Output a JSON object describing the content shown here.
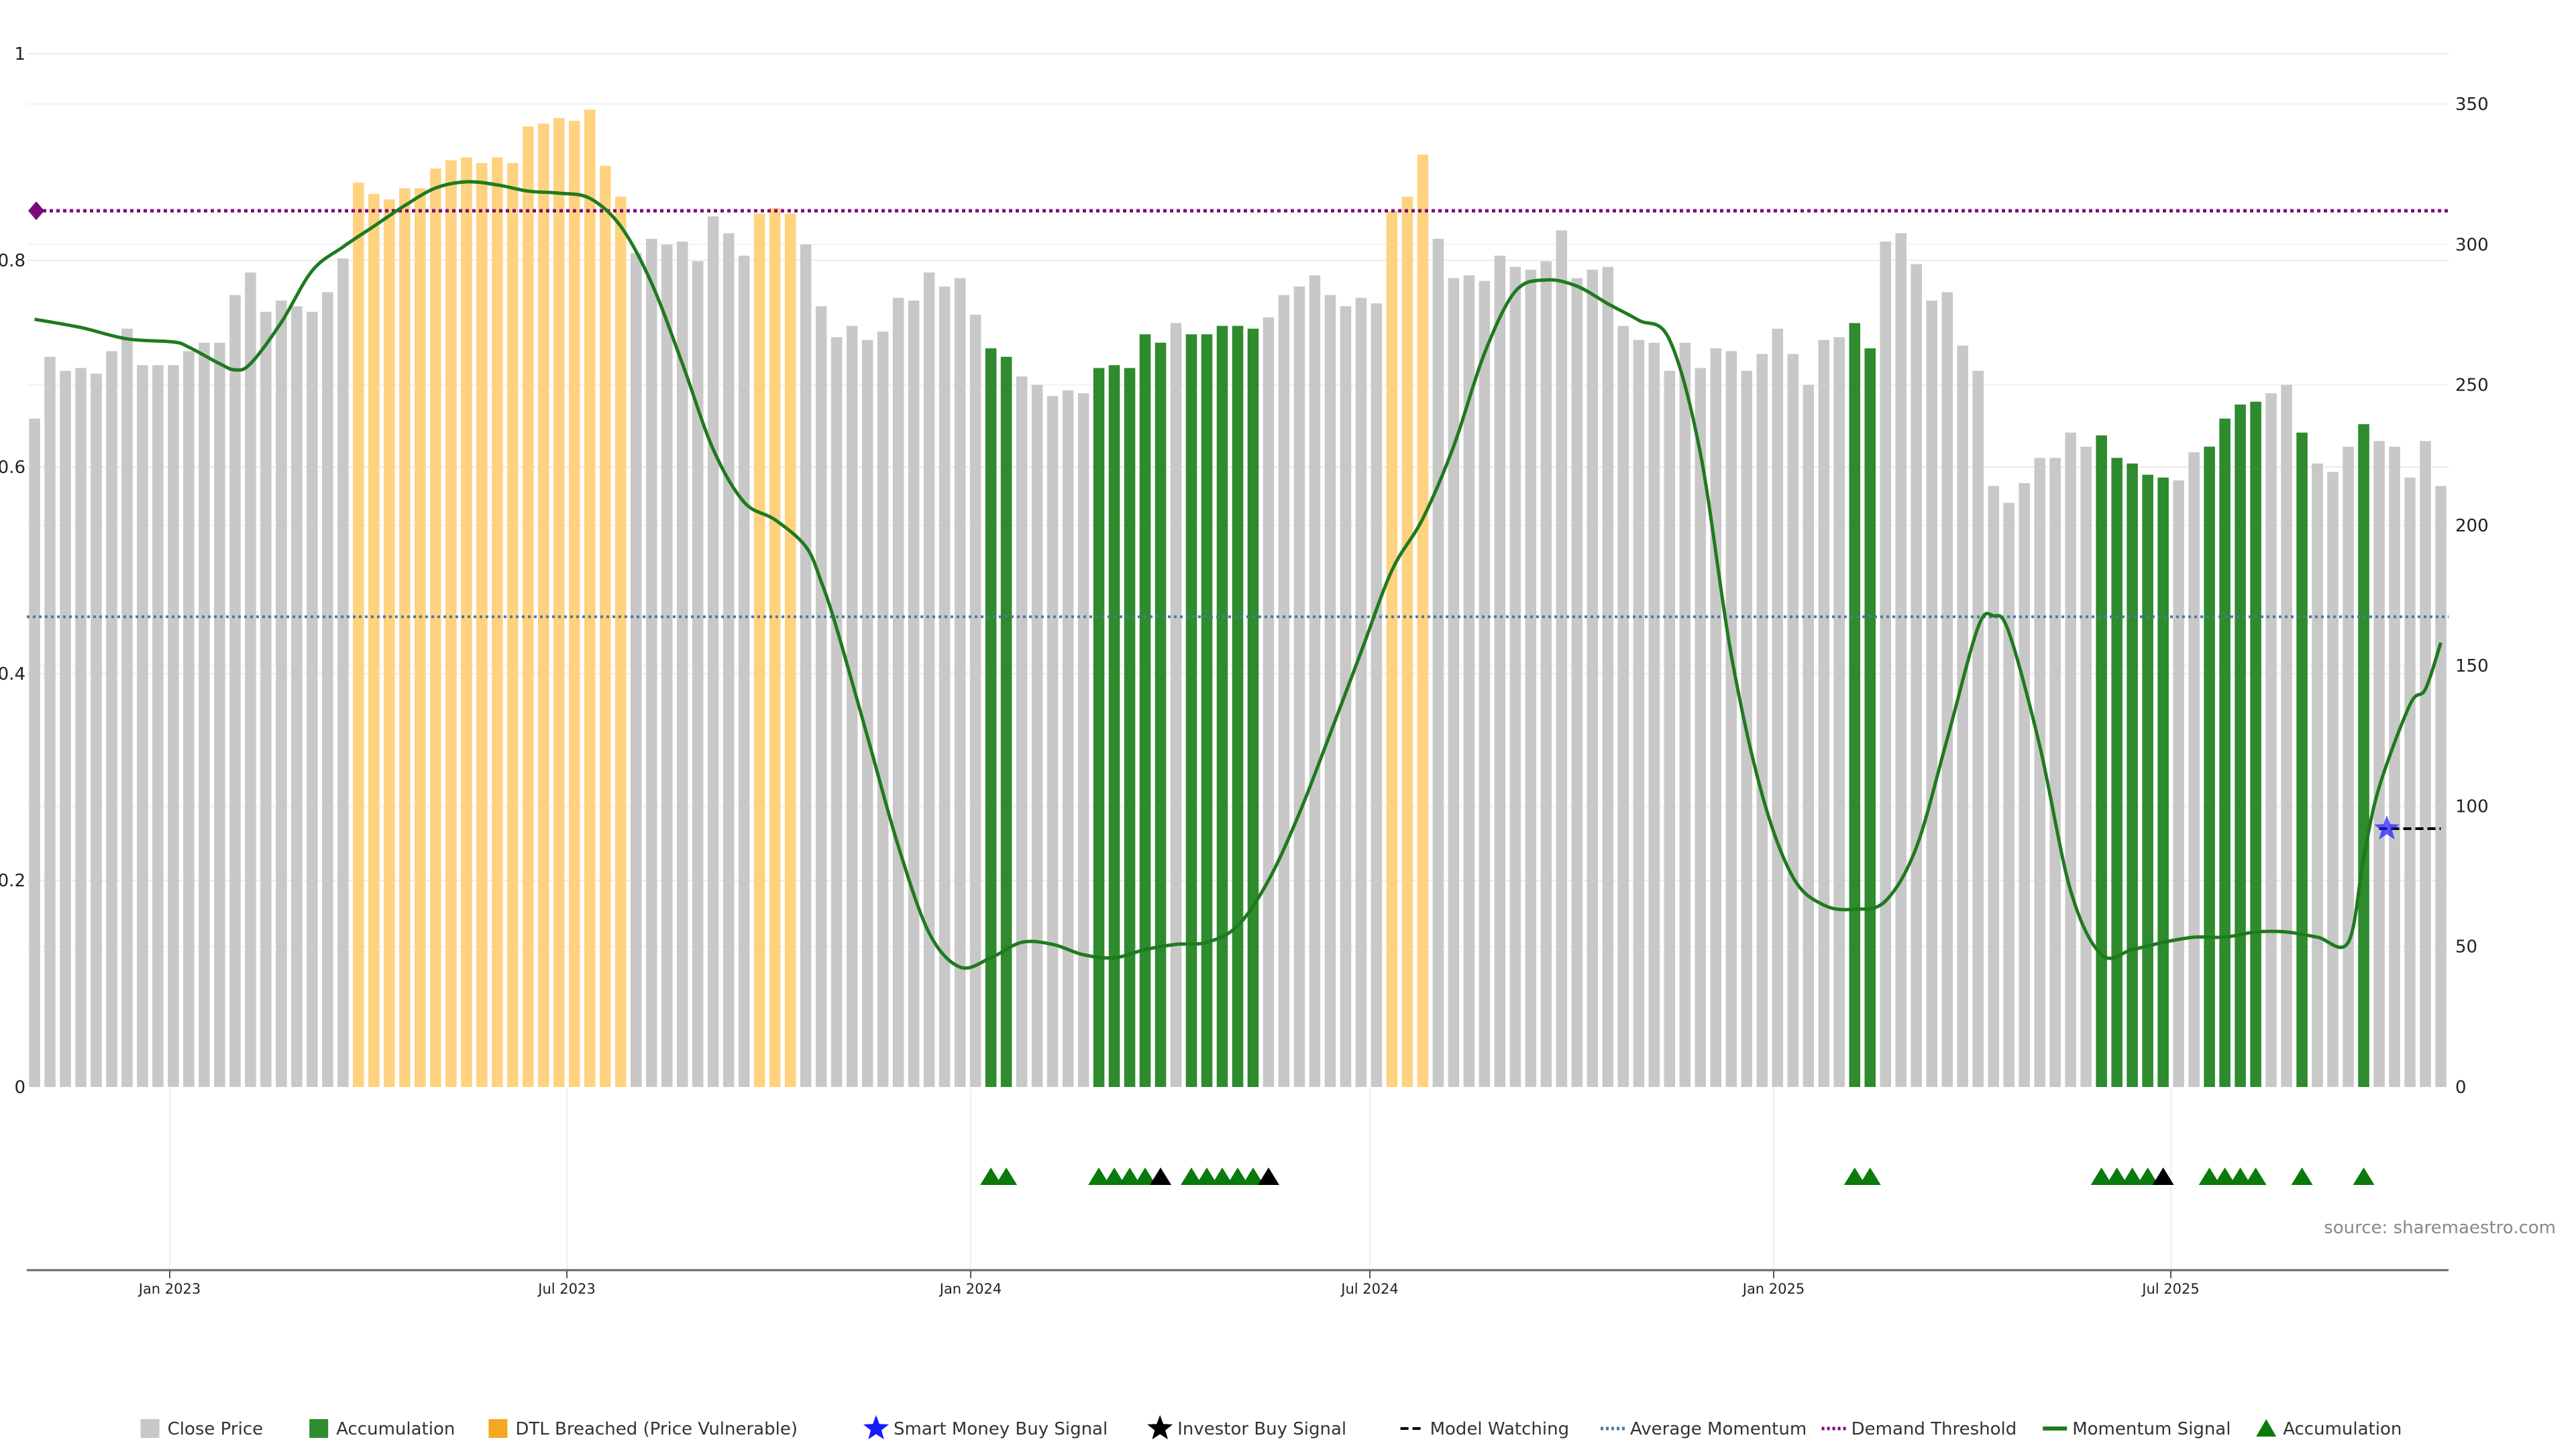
{
  "chart_data": {
    "type": "bar",
    "title": "",
    "source": "source: sharemaestro.com",
    "left_axis": {
      "ylim": [
        0,
        1
      ],
      "ticks": [
        "0",
        "0.2",
        "0.4",
        "0.6",
        "0.8",
        "1"
      ]
    },
    "right_axis": {
      "ylim": [
        0,
        350
      ],
      "ticks": [
        "0",
        "50",
        "100",
        "150",
        "200",
        "250",
        "300",
        "350"
      ]
    },
    "x_labels": [
      "Jan 2023",
      "Jul 2023",
      "Jan 2024",
      "Jul 2024",
      "Jan 2025",
      "Jul 2025"
    ],
    "grid": true,
    "colors": {
      "close_price": "#c8c8c8",
      "accumulation": "#2e8b2e",
      "dtl_breached": "#ffd27f",
      "momentum": "#1f7a1f",
      "average_momentum": "#4a78a0",
      "demand_threshold": "#7a0a7a",
      "smart_money": "#1a1aff",
      "investor": "#000000",
      "accum_marker": "#0a7a0a"
    },
    "bars": [
      {
        "v": 238,
        "s": "c"
      },
      {
        "v": 260,
        "s": "c"
      },
      {
        "v": 255,
        "s": "c"
      },
      {
        "v": 256,
        "s": "c"
      },
      {
        "v": 254,
        "s": "c"
      },
      {
        "v": 262,
        "s": "c"
      },
      {
        "v": 270,
        "s": "c"
      },
      {
        "v": 257,
        "s": "c"
      },
      {
        "v": 257,
        "s": "c"
      },
      {
        "v": 257,
        "s": "c"
      },
      {
        "v": 262,
        "s": "c"
      },
      {
        "v": 265,
        "s": "c"
      },
      {
        "v": 265,
        "s": "c"
      },
      {
        "v": 282,
        "s": "c"
      },
      {
        "v": 290,
        "s": "c"
      },
      {
        "v": 276,
        "s": "c"
      },
      {
        "v": 280,
        "s": "c"
      },
      {
        "v": 278,
        "s": "c"
      },
      {
        "v": 276,
        "s": "c"
      },
      {
        "v": 283,
        "s": "c"
      },
      {
        "v": 295,
        "s": "c"
      },
      {
        "v": 322,
        "s": "d"
      },
      {
        "v": 318,
        "s": "d"
      },
      {
        "v": 316,
        "s": "d"
      },
      {
        "v": 320,
        "s": "d"
      },
      {
        "v": 320,
        "s": "d"
      },
      {
        "v": 327,
        "s": "d"
      },
      {
        "v": 330,
        "s": "d"
      },
      {
        "v": 331,
        "s": "d"
      },
      {
        "v": 329,
        "s": "d"
      },
      {
        "v": 331,
        "s": "d"
      },
      {
        "v": 329,
        "s": "d"
      },
      {
        "v": 342,
        "s": "d"
      },
      {
        "v": 343,
        "s": "d"
      },
      {
        "v": 345,
        "s": "d"
      },
      {
        "v": 344,
        "s": "d"
      },
      {
        "v": 348,
        "s": "d"
      },
      {
        "v": 328,
        "s": "d"
      },
      {
        "v": 317,
        "s": "d"
      },
      {
        "v": 297,
        "s": "c"
      },
      {
        "v": 302,
        "s": "c"
      },
      {
        "v": 300,
        "s": "c"
      },
      {
        "v": 301,
        "s": "c"
      },
      {
        "v": 294,
        "s": "c"
      },
      {
        "v": 310,
        "s": "c"
      },
      {
        "v": 304,
        "s": "c"
      },
      {
        "v": 296,
        "s": "c"
      },
      {
        "v": 311,
        "s": "d"
      },
      {
        "v": 313,
        "s": "d"
      },
      {
        "v": 311,
        "s": "d"
      },
      {
        "v": 300,
        "s": "c"
      },
      {
        "v": 278,
        "s": "c"
      },
      {
        "v": 267,
        "s": "c"
      },
      {
        "v": 271,
        "s": "c"
      },
      {
        "v": 266,
        "s": "c"
      },
      {
        "v": 269,
        "s": "c"
      },
      {
        "v": 281,
        "s": "c"
      },
      {
        "v": 280,
        "s": "c"
      },
      {
        "v": 290,
        "s": "c"
      },
      {
        "v": 285,
        "s": "c"
      },
      {
        "v": 288,
        "s": "c"
      },
      {
        "v": 275,
        "s": "c"
      },
      {
        "v": 263,
        "s": "a"
      },
      {
        "v": 260,
        "s": "a"
      },
      {
        "v": 253,
        "s": "c"
      },
      {
        "v": 250,
        "s": "c"
      },
      {
        "v": 246,
        "s": "c"
      },
      {
        "v": 248,
        "s": "c"
      },
      {
        "v": 247,
        "s": "c"
      },
      {
        "v": 256,
        "s": "a"
      },
      {
        "v": 257,
        "s": "a"
      },
      {
        "v": 256,
        "s": "a"
      },
      {
        "v": 268,
        "s": "a"
      },
      {
        "v": 265,
        "s": "a"
      },
      {
        "v": 272,
        "s": "c"
      },
      {
        "v": 268,
        "s": "a"
      },
      {
        "v": 268,
        "s": "a"
      },
      {
        "v": 271,
        "s": "a"
      },
      {
        "v": 271,
        "s": "a"
      },
      {
        "v": 270,
        "s": "a"
      },
      {
        "v": 274,
        "s": "c"
      },
      {
        "v": 282,
        "s": "c"
      },
      {
        "v": 285,
        "s": "c"
      },
      {
        "v": 289,
        "s": "c"
      },
      {
        "v": 282,
        "s": "c"
      },
      {
        "v": 278,
        "s": "c"
      },
      {
        "v": 281,
        "s": "c"
      },
      {
        "v": 279,
        "s": "c"
      },
      {
        "v": 312,
        "s": "d"
      },
      {
        "v": 317,
        "s": "d"
      },
      {
        "v": 332,
        "s": "d"
      },
      {
        "v": 302,
        "s": "c"
      },
      {
        "v": 288,
        "s": "c"
      },
      {
        "v": 289,
        "s": "c"
      },
      {
        "v": 287,
        "s": "c"
      },
      {
        "v": 296,
        "s": "c"
      },
      {
        "v": 292,
        "s": "c"
      },
      {
        "v": 291,
        "s": "c"
      },
      {
        "v": 294,
        "s": "c"
      },
      {
        "v": 305,
        "s": "c"
      },
      {
        "v": 288,
        "s": "c"
      },
      {
        "v": 291,
        "s": "c"
      },
      {
        "v": 292,
        "s": "c"
      },
      {
        "v": 271,
        "s": "c"
      },
      {
        "v": 266,
        "s": "c"
      },
      {
        "v": 265,
        "s": "c"
      },
      {
        "v": 255,
        "s": "c"
      },
      {
        "v": 265,
        "s": "c"
      },
      {
        "v": 256,
        "s": "c"
      },
      {
        "v": 263,
        "s": "c"
      },
      {
        "v": 262,
        "s": "c"
      },
      {
        "v": 255,
        "s": "c"
      },
      {
        "v": 261,
        "s": "c"
      },
      {
        "v": 270,
        "s": "c"
      },
      {
        "v": 261,
        "s": "c"
      },
      {
        "v": 250,
        "s": "c"
      },
      {
        "v": 266,
        "s": "c"
      },
      {
        "v": 267,
        "s": "c"
      },
      {
        "v": 272,
        "s": "a"
      },
      {
        "v": 263,
        "s": "a"
      },
      {
        "v": 301,
        "s": "c"
      },
      {
        "v": 304,
        "s": "c"
      },
      {
        "v": 293,
        "s": "c"
      },
      {
        "v": 280,
        "s": "c"
      },
      {
        "v": 283,
        "s": "c"
      },
      {
        "v": 264,
        "s": "c"
      },
      {
        "v": 255,
        "s": "c"
      },
      {
        "v": 214,
        "s": "c"
      },
      {
        "v": 208,
        "s": "c"
      },
      {
        "v": 215,
        "s": "c"
      },
      {
        "v": 224,
        "s": "c"
      },
      {
        "v": 224,
        "s": "c"
      },
      {
        "v": 233,
        "s": "c"
      },
      {
        "v": 228,
        "s": "c"
      },
      {
        "v": 232,
        "s": "a"
      },
      {
        "v": 224,
        "s": "a"
      },
      {
        "v": 222,
        "s": "a"
      },
      {
        "v": 218,
        "s": "a"
      },
      {
        "v": 217,
        "s": "a"
      },
      {
        "v": 216,
        "s": "c"
      },
      {
        "v": 226,
        "s": "c"
      },
      {
        "v": 228,
        "s": "a"
      },
      {
        "v": 238,
        "s": "a"
      },
      {
        "v": 243,
        "s": "a"
      },
      {
        "v": 244,
        "s": "a"
      },
      {
        "v": 247,
        "s": "c"
      },
      {
        "v": 250,
        "s": "c"
      },
      {
        "v": 233,
        "s": "a"
      },
      {
        "v": 222,
        "s": "c"
      },
      {
        "v": 219,
        "s": "c"
      },
      {
        "v": 228,
        "s": "c"
      },
      {
        "v": 236,
        "s": "a"
      },
      {
        "v": 230,
        "s": "c"
      },
      {
        "v": 228,
        "s": "c"
      },
      {
        "v": 217,
        "s": "c"
      },
      {
        "v": 230,
        "s": "c"
      },
      {
        "v": 214,
        "s": "c"
      }
    ],
    "momentum": [
      [
        0,
        0.743
      ],
      [
        3,
        0.735
      ],
      [
        6,
        0.724
      ],
      [
        9,
        0.721
      ],
      [
        10,
        0.716
      ],
      [
        12,
        0.7
      ],
      [
        13,
        0.694
      ],
      [
        14,
        0.7
      ],
      [
        16,
        0.74
      ],
      [
        18,
        0.79
      ],
      [
        20,
        0.813
      ],
      [
        22,
        0.833
      ],
      [
        24,
        0.853
      ],
      [
        26,
        0.87
      ],
      [
        28,
        0.876
      ],
      [
        30,
        0.873
      ],
      [
        32,
        0.867
      ],
      [
        34,
        0.865
      ],
      [
        36,
        0.86
      ],
      [
        38,
        0.833
      ],
      [
        40,
        0.778
      ],
      [
        42,
        0.7
      ],
      [
        44,
        0.617
      ],
      [
        46,
        0.566
      ],
      [
        48,
        0.549
      ],
      [
        50,
        0.523
      ],
      [
        51,
        0.489
      ],
      [
        52,
        0.444
      ],
      [
        54,
        0.339
      ],
      [
        56,
        0.233
      ],
      [
        58,
        0.149
      ],
      [
        60,
        0.116
      ],
      [
        62,
        0.125
      ],
      [
        64,
        0.14
      ],
      [
        66,
        0.138
      ],
      [
        68,
        0.128
      ],
      [
        70,
        0.125
      ],
      [
        72,
        0.133
      ],
      [
        74,
        0.138
      ],
      [
        76,
        0.14
      ],
      [
        78,
        0.156
      ],
      [
        80,
        0.2
      ],
      [
        82,
        0.265
      ],
      [
        84,
        0.342
      ],
      [
        86,
        0.421
      ],
      [
        88,
        0.5
      ],
      [
        90,
        0.55
      ],
      [
        92,
        0.62
      ],
      [
        94,
        0.71
      ],
      [
        96,
        0.77
      ],
      [
        98,
        0.781
      ],
      [
        100,
        0.775
      ],
      [
        102,
        0.758
      ],
      [
        104,
        0.742
      ],
      [
        106,
        0.723
      ],
      [
        108,
        0.613
      ],
      [
        110,
        0.418
      ],
      [
        112,
        0.283
      ],
      [
        114,
        0.203
      ],
      [
        116,
        0.176
      ],
      [
        118,
        0.172
      ],
      [
        120,
        0.18
      ],
      [
        122,
        0.232
      ],
      [
        124,
        0.337
      ],
      [
        126,
        0.445
      ],
      [
        127,
        0.456
      ],
      [
        128,
        0.44
      ],
      [
        130,
        0.33
      ],
      [
        132,
        0.19
      ],
      [
        134,
        0.128
      ],
      [
        136,
        0.133
      ],
      [
        138,
        0.14
      ],
      [
        140,
        0.145
      ],
      [
        142,
        0.145
      ],
      [
        144,
        0.15
      ],
      [
        146,
        0.15
      ],
      [
        148,
        0.145
      ],
      [
        150,
        0.14
      ],
      [
        151,
        0.222
      ],
      [
        152,
        0.29
      ],
      [
        154,
        0.37
      ],
      [
        155,
        0.385
      ],
      [
        156,
        0.43
      ]
    ],
    "avg_momentum": 0.455,
    "demand_threshold": 0.848,
    "model_watching": {
      "x_start": 152,
      "x_end": 156,
      "y": 0.25
    },
    "smart_money_signal": {
      "x": 152.5,
      "y": 0.25
    },
    "accumulation_markers": [
      62,
      63,
      69,
      70,
      71,
      72,
      75,
      76,
      77,
      78,
      79,
      118,
      119,
      134,
      135,
      136,
      137,
      141,
      142,
      143,
      144,
      147,
      151
    ],
    "investor_markers": [
      73,
      80,
      138
    ],
    "legend": [
      {
        "label": "Close Price",
        "kind": "square",
        "color": "#c8c8c8"
      },
      {
        "label": "Accumulation",
        "kind": "square",
        "color": "#2e8b2e"
      },
      {
        "label": "DTL Breached (Price Vulnerable)",
        "kind": "square",
        "color": "#f5a623"
      },
      {
        "label": "Smart Money Buy Signal",
        "kind": "star",
        "color": "#1a1aff"
      },
      {
        "label": "Investor Buy Signal",
        "kind": "star",
        "color": "#000000"
      },
      {
        "label": "Model Watching",
        "kind": "dash",
        "color": "#000000"
      },
      {
        "label": "Average Momentum",
        "kind": "dotted",
        "color": "#4a78a0"
      },
      {
        "label": "Demand Threshold",
        "kind": "dotted",
        "color": "#7a0a7a"
      },
      {
        "label": "Momentum Signal",
        "kind": "line",
        "color": "#1f7a1f"
      },
      {
        "label": "Accumulation",
        "kind": "triangle",
        "color": "#0a7a0a"
      }
    ]
  }
}
